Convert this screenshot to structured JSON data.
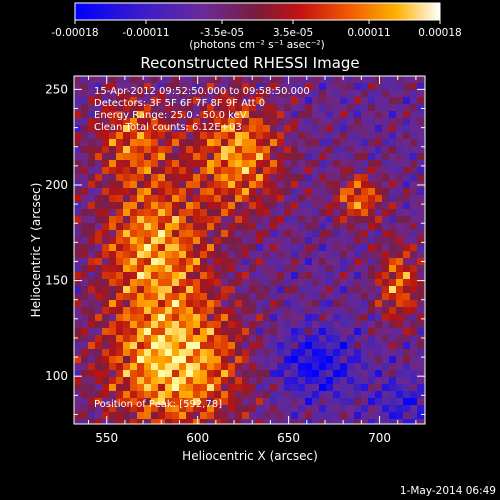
{
  "chart_data": {
    "type": "heatmap",
    "title": "Reconstructed RHESSI Image",
    "xlabel": "Heliocentric X (arcsec)",
    "ylabel": "Heliocentric Y (arcsec)",
    "xlim": [
      532,
      725
    ],
    "ylim": [
      75,
      257
    ],
    "xticks": [
      550,
      600,
      650,
      700
    ],
    "yticks": [
      100,
      150,
      200,
      250
    ],
    "colorbar": {
      "ticks": [
        "-0.00018",
        "-0.00011",
        "-3.5e-05",
        "3.5e-05",
        "0.00011",
        "0.00018"
      ],
      "tick_values": [
        -0.00018,
        -0.00011,
        -3.5e-05,
        3.5e-05,
        0.00011,
        0.00018
      ],
      "range": [
        -0.00018,
        0.00018
      ],
      "units": "(photons cm⁻² s⁻¹ asec⁻²)"
    },
    "annotations": [
      "15-Apr-2012 09:52:50.000 to 09:58:50.000",
      "Detectors: 3F 5F 6F 7F 8F 9F  Att 0",
      "Energy Range: 25.0 - 50.0 keV",
      "Clean     Total counts: 6.12E+03"
    ],
    "footer_note": "Position of Peak: [592,78]",
    "colors": {
      "background": "#000000",
      "cmap": [
        "#0000ff",
        "#5a2fa0",
        "#7b2a86",
        "#b21c1c",
        "#e84a00",
        "#ffa000",
        "#ffff80"
      ]
    }
  },
  "timestamp": "1-May-2014 06:49"
}
